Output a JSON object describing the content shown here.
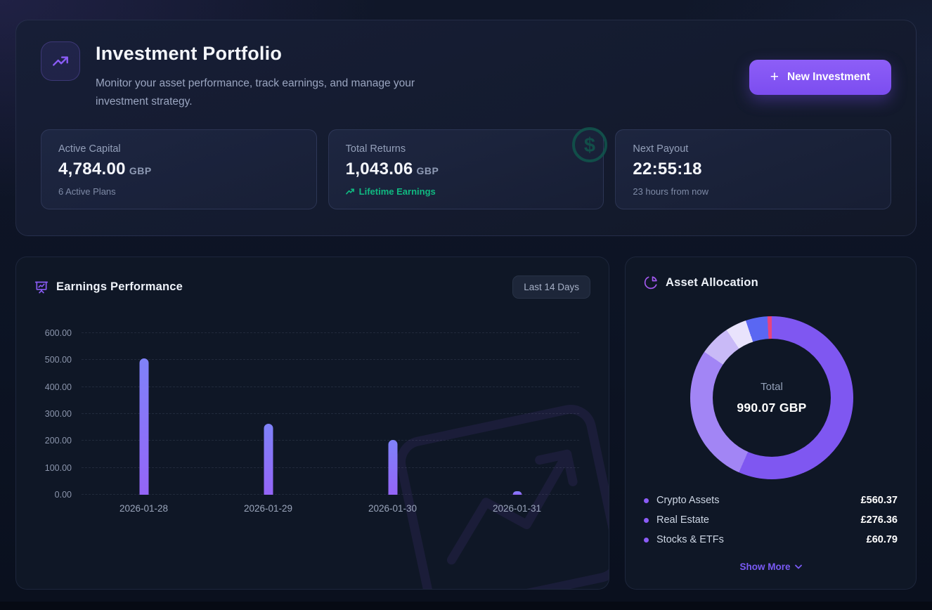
{
  "header": {
    "title": "Investment Portfolio",
    "subtitle": "Monitor your asset performance, track earnings, and manage your investment strategy.",
    "button_label": "New Investment",
    "button_plus": "+"
  },
  "stats": [
    {
      "label": "Active Capital",
      "value": "4,784.00",
      "currency": "GBP",
      "sub": "6 Active Plans"
    },
    {
      "label": "Total Returns",
      "value": "1,043.06",
      "currency": "GBP",
      "sub": "Lifetime Earnings",
      "watermark": "$"
    },
    {
      "label": "Next Payout",
      "value": "22:55:18",
      "currency": "",
      "sub": "23 hours from now"
    }
  ],
  "earnings_panel": {
    "title": "Earnings Performance",
    "range_badge": "Last 14 Days"
  },
  "allocation_panel": {
    "title": "Asset Allocation",
    "center_label": "Total",
    "center_value": "990.07 GBP",
    "legend": [
      {
        "label": "Crypto Assets",
        "value": "£560.37"
      },
      {
        "label": "Real Estate",
        "value": "£276.36"
      },
      {
        "label": "Stocks & ETFs",
        "value": "£60.79"
      }
    ],
    "show_more": "Show More"
  },
  "chart_data": [
    {
      "type": "bar",
      "title": "Earnings Performance",
      "categories": [
        "2026-01-28",
        "2026-01-29",
        "2026-01-30",
        "2026-01-31"
      ],
      "values": [
        505,
        263,
        203,
        13
      ],
      "ylim": [
        0,
        600
      ],
      "yticks": [
        "600.00",
        "500.00",
        "400.00",
        "300.00",
        "200.00",
        "100.00",
        "0.00"
      ],
      "grid": "dashed-horizontal",
      "bar_gradient": [
        "#7f82f9",
        "#9465f7"
      ]
    },
    {
      "type": "donut",
      "title": "Asset Allocation",
      "total_label": "Total",
      "total_value": "990.07 GBP",
      "segments": [
        {
          "label": "Crypto Assets",
          "value": 560.37,
          "color": "#7f57f1"
        },
        {
          "label": "Real Estate",
          "value": 276.36,
          "color": "#a285f5"
        },
        {
          "label": "Stocks & ETFs",
          "value": 60.79,
          "color": "#c9baf7"
        },
        {
          "label": "",
          "value": 41.3,
          "color": "#e9e3fc"
        },
        {
          "label": "",
          "value": 42.75,
          "color": "#5a67f2"
        },
        {
          "label": "",
          "value": 8.5,
          "color": "#e8447e"
        }
      ]
    }
  ],
  "colors": {
    "accent": "#8b5cf6",
    "success": "#10b981",
    "legend_dot": "#8b5cf6",
    "panel_bg": "#0f1726",
    "watermark_teal": "#11564c"
  }
}
